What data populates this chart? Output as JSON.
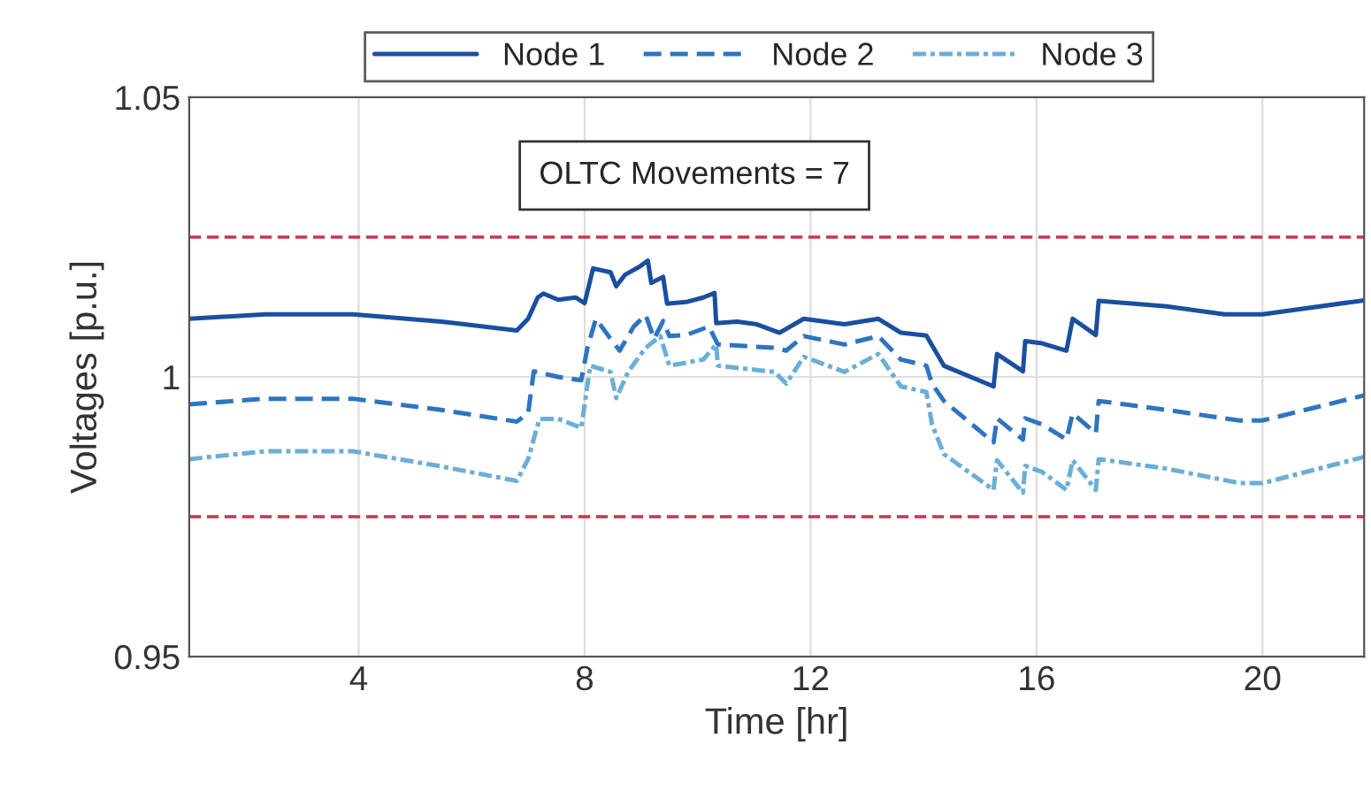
{
  "chart_data": {
    "type": "line",
    "xlabel": "Time [hr]",
    "ylabel": "Voltages [p.u.]",
    "annotations": [
      "OLTC Movements = 7"
    ],
    "xlim": [
      1,
      21.8
    ],
    "xticks": [
      4,
      8,
      12,
      16,
      20
    ],
    "ylim": [
      0.95,
      1.05
    ],
    "yticks": [
      0.95,
      1,
      1.05
    ],
    "grid": true,
    "legend": "top",
    "marker": "none",
    "ref_lines": [
      {
        "axis": "y",
        "value": 1.025,
        "color": "#c8344f",
        "line_style": "dashed"
      },
      {
        "axis": "y",
        "value": 0.975,
        "color": "#c8344f",
        "line_style": "dashed"
      }
    ],
    "series": [
      {
        "name": "Node 1",
        "color": "#1a4fa0",
        "line_style": "solid",
        "x": [
          1.0,
          2.35,
          3.9,
          5.46,
          6.8,
          7.0,
          7.17,
          7.27,
          7.53,
          7.84,
          8.0,
          8.15,
          8.46,
          8.56,
          8.72,
          8.97,
          9.12,
          9.18,
          9.39,
          9.46,
          9.8,
          10.1,
          10.3,
          10.33,
          10.7,
          11.05,
          11.45,
          11.88,
          12.6,
          13.2,
          13.6,
          14.05,
          14.36,
          15.24,
          15.3,
          15.76,
          15.8,
          16.1,
          16.53,
          16.64,
          17.05,
          17.1,
          18.3,
          19.33,
          20.0,
          21.8
        ],
        "values": [
          1.0104,
          1.0112,
          1.0112,
          1.0099,
          1.0083,
          1.0104,
          1.0142,
          1.0149,
          1.0138,
          1.0142,
          1.0132,
          1.0194,
          1.0187,
          1.0162,
          1.0183,
          1.0197,
          1.0208,
          1.0168,
          1.0179,
          1.0131,
          1.0134,
          1.0142,
          1.015,
          1.0096,
          1.0099,
          1.0094,
          1.0079,
          1.0104,
          1.0094,
          1.0104,
          1.0079,
          1.0074,
          1.002,
          0.9983,
          1.0041,
          1.001,
          1.0064,
          1.006,
          1.0047,
          1.0104,
          1.0075,
          1.0136,
          1.0126,
          1.0112,
          1.0112,
          1.0137
        ]
      },
      {
        "name": "Node 2",
        "color": "#2e75c0",
        "line_style": "dashed",
        "x": [
          1.0,
          2.35,
          3.9,
          5.46,
          6.8,
          7.0,
          7.1,
          7.53,
          7.94,
          8.05,
          8.2,
          8.46,
          8.62,
          8.87,
          9.08,
          9.23,
          9.39,
          9.5,
          9.8,
          10.2,
          10.36,
          11.36,
          11.57,
          11.88,
          12.6,
          13.2,
          13.6,
          14.05,
          14.15,
          14.36,
          15.24,
          15.3,
          15.76,
          15.8,
          16.1,
          16.53,
          16.64,
          17.05,
          17.1,
          18.3,
          19.6,
          20.0,
          21.8
        ],
        "values": [
          0.9951,
          0.9961,
          0.9961,
          0.9941,
          0.992,
          0.9935,
          1.001,
          1.0,
          0.9994,
          1.0052,
          1.0104,
          1.0068,
          1.0047,
          1.009,
          1.0111,
          1.0068,
          1.01,
          1.0073,
          1.0075,
          1.009,
          1.0058,
          1.0052,
          1.0047,
          1.0073,
          1.0058,
          1.0073,
          1.0031,
          1.002,
          0.9988,
          0.9957,
          0.9883,
          0.9926,
          0.9888,
          0.9926,
          0.9915,
          0.9888,
          0.9935,
          0.9899,
          0.9957,
          0.9941,
          0.9922,
          0.9922,
          0.9967
        ]
      },
      {
        "name": "Node 3",
        "color": "#6baed6",
        "line_style": "dotted",
        "x": [
          1.0,
          2.35,
          3.9,
          5.46,
          6.8,
          7.0,
          7.2,
          7.53,
          7.94,
          8.1,
          8.46,
          8.56,
          8.77,
          9.08,
          9.34,
          9.5,
          10.1,
          10.33,
          10.36,
          11.36,
          11.57,
          11.88,
          12.6,
          13.2,
          13.6,
          14.05,
          14.15,
          14.36,
          15.24,
          15.3,
          15.76,
          15.8,
          16.1,
          16.53,
          16.64,
          17.05,
          17.1,
          18.3,
          19.6,
          20.0,
          21.8
        ],
        "values": [
          0.9853,
          0.9867,
          0.9867,
          0.984,
          0.9814,
          0.9853,
          0.9925,
          0.9925,
          0.9909,
          1.002,
          1.0009,
          0.9962,
          1.0009,
          1.0052,
          1.0073,
          1.002,
          1.0031,
          1.0058,
          1.002,
          1.0009,
          0.9988,
          1.0036,
          1.0009,
          1.0041,
          0.9983,
          0.9973,
          0.9915,
          0.9862,
          0.9798,
          0.9851,
          0.9793,
          0.9841,
          0.983,
          0.9798,
          0.9851,
          0.9798,
          0.9853,
          0.9836,
          0.981,
          0.981,
          0.9857
        ]
      }
    ]
  }
}
